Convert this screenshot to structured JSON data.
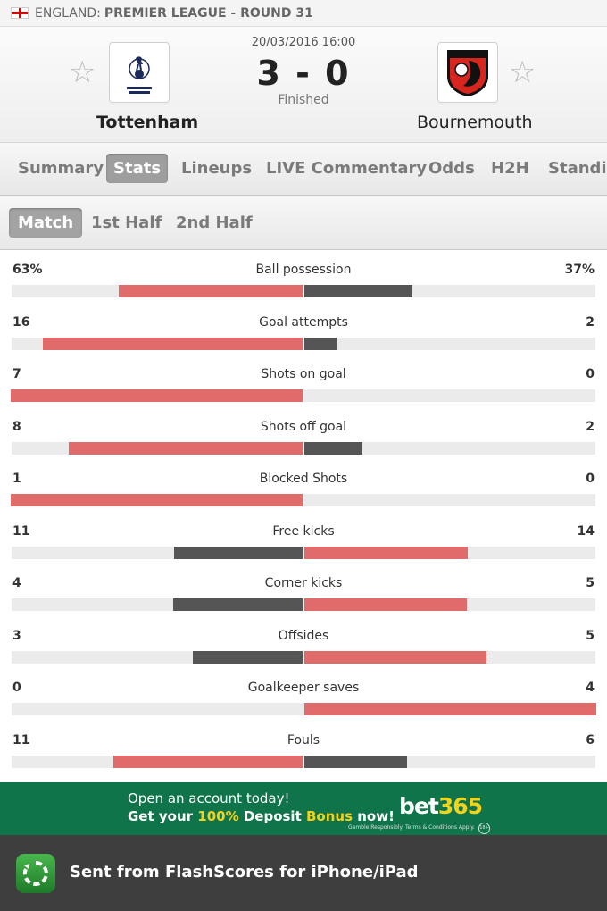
{
  "header": {
    "country": "ENGLAND:",
    "league": "PREMIER LEAGUE - ROUND 31"
  },
  "match": {
    "date": "20/03/2016 16:00",
    "score": "3 - 0",
    "status": "Finished",
    "home_team": "Tottenham",
    "away_team": "Bournemouth"
  },
  "tabs": [
    "Summary",
    "Stats",
    "Lineups",
    "LIVE Commentary",
    "Odds",
    "H2H",
    "Standi"
  ],
  "subtabs": [
    "Match",
    "1st Half",
    "2nd Half"
  ],
  "stats": [
    {
      "label": "Ball possession",
      "home": "63%",
      "away": "37%",
      "home_val": 63,
      "away_val": 37
    },
    {
      "label": "Goal attempts",
      "home": "16",
      "away": "2",
      "home_val": 16,
      "away_val": 2
    },
    {
      "label": "Shots on goal",
      "home": "7",
      "away": "0",
      "home_val": 7,
      "away_val": 0
    },
    {
      "label": "Shots off goal",
      "home": "8",
      "away": "2",
      "home_val": 8,
      "away_val": 2
    },
    {
      "label": "Blocked Shots",
      "home": "1",
      "away": "0",
      "home_val": 1,
      "away_val": 0
    },
    {
      "label": "Free kicks",
      "home": "11",
      "away": "14",
      "home_val": 11,
      "away_val": 14
    },
    {
      "label": "Corner kicks",
      "home": "4",
      "away": "5",
      "home_val": 4,
      "away_val": 5
    },
    {
      "label": "Offsides",
      "home": "3",
      "away": "5",
      "home_val": 3,
      "away_val": 5
    },
    {
      "label": "Goalkeeper saves",
      "home": "0",
      "away": "4",
      "home_val": 0,
      "away_val": 4
    },
    {
      "label": "Fouls",
      "home": "11",
      "away": "6",
      "home_val": 11,
      "away_val": 6
    }
  ],
  "colors": {
    "higher_bar": "#e06b6b",
    "lower_bar": "#555555",
    "ad_background": "#10744b",
    "ad_highlight": "#f2d21a",
    "footer_background": "#3e3e3e"
  },
  "ad": {
    "line1": "Open an account today!",
    "line2_pre": "Get your ",
    "line2_pct": "100%",
    "line2_mid": " Deposit ",
    "line2_bonus": "Bonus",
    "line2_post": " now!",
    "brand_pre": "bet",
    "brand_num": "365",
    "small_print": "Gamble Responsibly. Terms & Conditions Apply.",
    "age": "18+"
  },
  "footer": {
    "text": "Sent from FlashScores for iPhone/iPad"
  }
}
